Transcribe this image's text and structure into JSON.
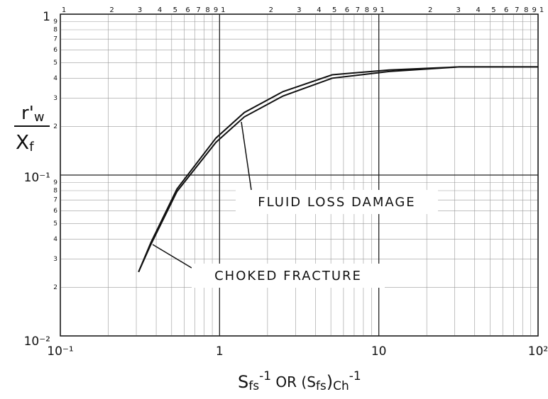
{
  "chart_data": {
    "type": "line",
    "xscale": "log",
    "yscale": "log",
    "grid": true,
    "xlim": [
      0.1,
      100
    ],
    "ylim": [
      0.01,
      1
    ],
    "xticks": [
      {
        "value": 0.1,
        "label": "10⁻¹"
      },
      1,
      {
        "value": 10,
        "label": "10"
      },
      {
        "value": 100,
        "label": "10²"
      }
    ],
    "yticks": [
      {
        "value": 0.01,
        "label": "10⁻²"
      },
      {
        "value": 0.1,
        "label": "10⁻¹"
      },
      1
    ],
    "x_top_ticks": [
      {
        "value": 0.1,
        "label": "1"
      },
      {
        "value": 0.2,
        "label": "2"
      },
      {
        "value": 0.3,
        "label": "3"
      },
      {
        "value": 0.4,
        "label": "4"
      },
      {
        "value": 0.5,
        "label": "5"
      },
      {
        "value": 0.6,
        "label": "6"
      },
      {
        "value": 0.7,
        "label": "7"
      },
      {
        "value": 0.8,
        "label": "8"
      },
      {
        "value": 0.9,
        "label": "9"
      },
      {
        "value": 1,
        "label": "1"
      },
      {
        "value": 2,
        "label": "2"
      },
      {
        "value": 3,
        "label": "3"
      },
      {
        "value": 4,
        "label": "4"
      },
      {
        "value": 5,
        "label": "5"
      },
      {
        "value": 6,
        "label": "6"
      },
      {
        "value": 7,
        "label": "7"
      },
      {
        "value": 8,
        "label": "8"
      },
      {
        "value": 9,
        "label": "9"
      },
      {
        "value": 10,
        "label": "1"
      },
      {
        "value": 20,
        "label": "2"
      },
      {
        "value": 30,
        "label": "3"
      },
      {
        "value": 40,
        "label": "4"
      },
      {
        "value": 50,
        "label": "5"
      },
      {
        "value": 60,
        "label": "6"
      },
      {
        "value": 70,
        "label": "7"
      },
      {
        "value": 80,
        "label": "8"
      },
      {
        "value": 90,
        "label": "9"
      },
      {
        "value": 100,
        "label": "1"
      }
    ],
    "y_minor_ticks": [
      {
        "value": 0.02,
        "label": "2"
      },
      {
        "value": 0.03,
        "label": "3"
      },
      {
        "value": 0.04,
        "label": "4"
      },
      {
        "value": 0.05,
        "label": "5"
      },
      {
        "value": 0.06,
        "label": "6"
      },
      {
        "value": 0.07,
        "label": "7"
      },
      {
        "value": 0.08,
        "label": "8"
      },
      {
        "value": 0.09,
        "label": "9"
      },
      {
        "value": 0.2,
        "label": "2"
      },
      {
        "value": 0.3,
        "label": "3"
      },
      {
        "value": 0.4,
        "label": "4"
      },
      {
        "value": 0.5,
        "label": "5"
      },
      {
        "value": 0.6,
        "label": "6"
      },
      {
        "value": 0.7,
        "label": "7"
      },
      {
        "value": 0.8,
        "label": "8"
      },
      {
        "value": 0.9,
        "label": "9"
      }
    ],
    "xlabel_parts": [
      "S",
      "fs",
      "-1",
      " OR (S",
      "fs",
      ")",
      "Ch",
      "-1"
    ],
    "ylabel": {
      "numerator": [
        "r'",
        "w"
      ],
      "denominator": [
        "X",
        "f"
      ]
    },
    "x": [
      0.31,
      0.37,
      0.54,
      0.95,
      1.43,
      2.5,
      5.1,
      11.6,
      32,
      100
    ],
    "series": [
      {
        "name": "CHOKED FRACTURE",
        "color": "#111111",
        "values": [
          0.025,
          0.037,
          0.079,
          0.16,
          0.23,
          0.31,
          0.4,
          0.44,
          0.47,
          0.47
        ]
      },
      {
        "name": "FLUID LOSS DAMAGE",
        "color": "#111111",
        "values": [
          0.025,
          0.038,
          0.082,
          0.17,
          0.245,
          0.33,
          0.42,
          0.45,
          0.47,
          0.47
        ]
      }
    ]
  }
}
